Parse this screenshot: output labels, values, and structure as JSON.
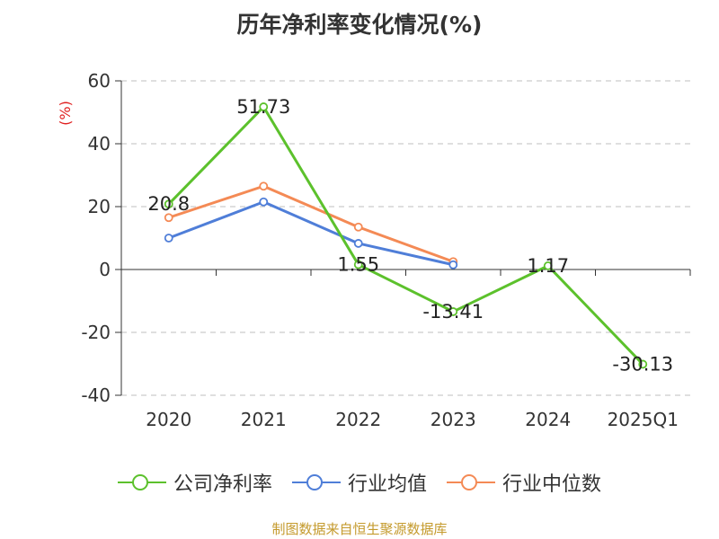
{
  "title": "历年净利率变化情况(%)",
  "source_text": "制图数据来自恒生聚源数据库",
  "colors": {
    "company": "#5cc12c",
    "industry_avg": "#4f7ed8",
    "industry_median": "#f48a55",
    "ylabel": "#e02020",
    "source": "#c49a2c"
  },
  "chart_data": {
    "type": "line",
    "title": "历年净利率变化情况(%)",
    "categories": [
      "2020",
      "2021",
      "2022",
      "2023",
      "2024",
      "2025Q1"
    ],
    "ylabel": "(%)",
    "ylim": [
      -40,
      60
    ],
    "yticks": [
      60,
      40,
      20,
      0,
      -20,
      -40
    ],
    "ytick_labels": [
      "60",
      "40",
      "20",
      "0",
      "-20",
      "-40"
    ],
    "grid": true,
    "legend_position": "bottom",
    "series": [
      {
        "name": "公司净利率",
        "key": "company",
        "values": [
          20.8,
          51.73,
          1.55,
          -13.41,
          1.17,
          -30.13
        ],
        "labels": [
          "20.8",
          "51.73",
          "1.55",
          "-13.41",
          "1.17",
          "-30.13"
        ]
      },
      {
        "name": "行业均值",
        "key": "industry_avg",
        "values": [
          10.0,
          21.5,
          8.3,
          1.5,
          null,
          null
        ]
      },
      {
        "name": "行业中位数",
        "key": "industry_median",
        "values": [
          16.5,
          26.5,
          13.5,
          2.5,
          null,
          null
        ]
      }
    ]
  }
}
